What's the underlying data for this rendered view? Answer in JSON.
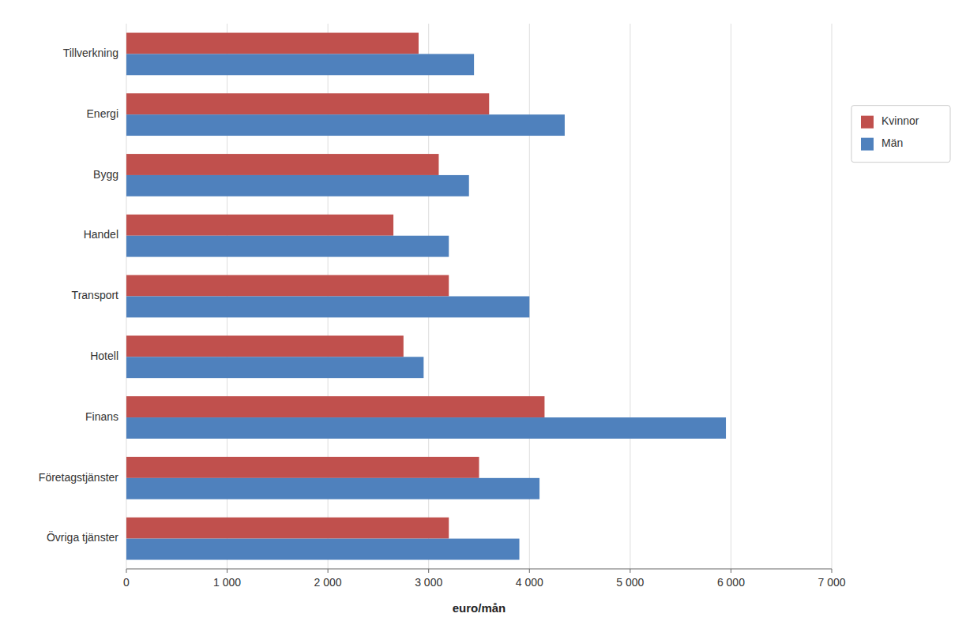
{
  "chart_data": {
    "type": "bar",
    "orientation": "horizontal",
    "xlabel": "euro/mån",
    "categories": [
      "Tillverkning",
      "Energi",
      "Bygg",
      "Handel",
      "Transport",
      "Hotell",
      "Finans",
      "Företagstjänster",
      "Övriga tjänster"
    ],
    "series": [
      {
        "name": "Kvinnor",
        "color": "#C0504D",
        "values": [
          2900,
          3600,
          3100,
          2650,
          3200,
          2750,
          4150,
          3500,
          3200
        ]
      },
      {
        "name": "Män",
        "color": "#4F81BD",
        "values": [
          3450,
          4350,
          3400,
          3200,
          4000,
          2950,
          5950,
          4100,
          3900
        ]
      }
    ],
    "xlim": [
      0,
      7000
    ],
    "xticks": [
      0,
      {
        "value": 1000,
        "label": "1 000"
      },
      {
        "value": 2000,
        "label": "2 000"
      },
      {
        "value": 3000,
        "label": "3 000"
      },
      {
        "value": 4000,
        "label": "4 000"
      },
      {
        "value": 5000,
        "label": "5 000"
      },
      {
        "value": 6000,
        "label": "6 000"
      },
      {
        "value": 7000,
        "label": "7 000"
      }
    ],
    "grid": true,
    "legend": "right"
  }
}
